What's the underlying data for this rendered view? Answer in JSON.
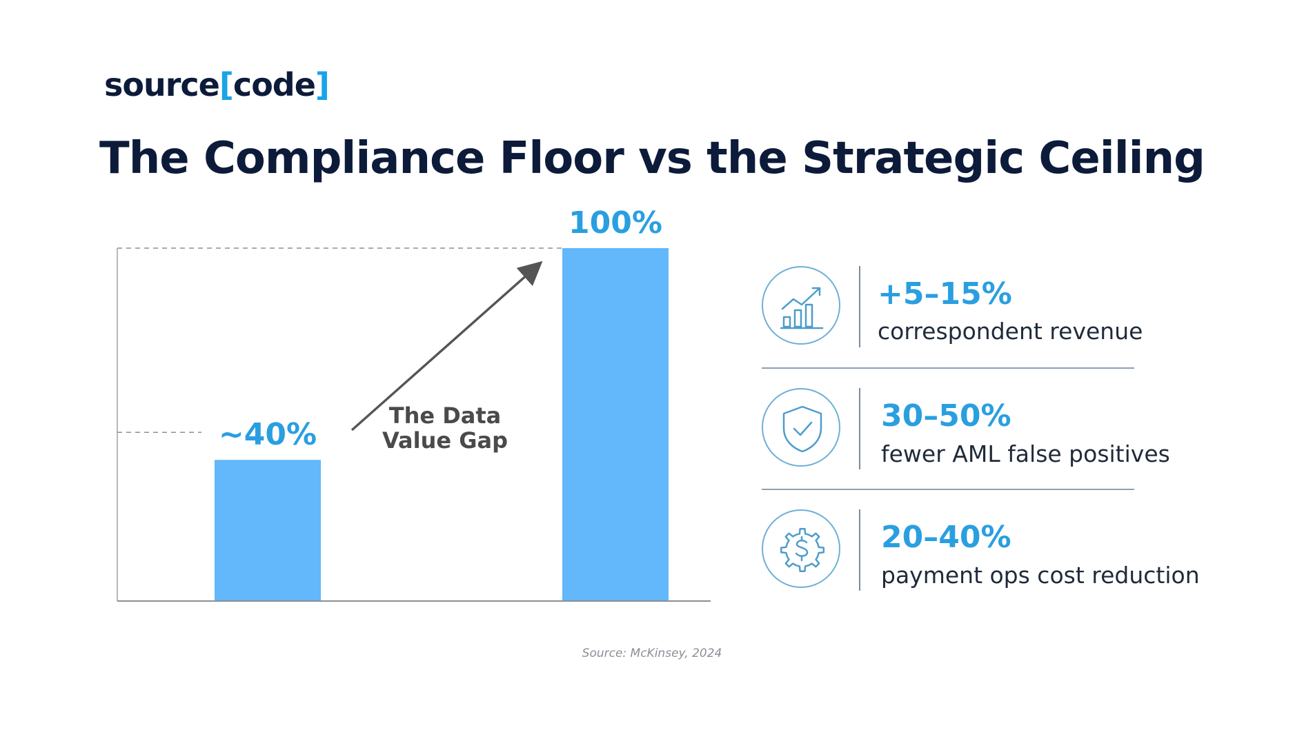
{
  "logo": {
    "prefix": "source",
    "open_bracket": "[",
    "word": "code",
    "close_bracket": "]"
  },
  "title": "The Compliance Floor vs the Strategic Ceiling",
  "chart_data": {
    "type": "bar",
    "categories": [
      "",
      ""
    ],
    "values": [
      40,
      100
    ],
    "data_labels": [
      "~40%",
      "100%"
    ],
    "ylim": [
      0,
      100
    ],
    "annotation": {
      "line1": "The Data",
      "line2": "Value Gap"
    },
    "bar_color": "#62b8fb",
    "label_color": "#2a9fe0",
    "grid": false
  },
  "stats": [
    {
      "icon": "growth-chart-icon",
      "value": "+5–15%",
      "label": "correspondent revenue"
    },
    {
      "icon": "shield-check-icon",
      "value": "30–50%",
      "label": "fewer AML false positives"
    },
    {
      "icon": "gear-dollar-icon",
      "value": "20–40%",
      "label": "payment ops cost reduction"
    }
  ],
  "source": "Source: McKinsey, 2024"
}
